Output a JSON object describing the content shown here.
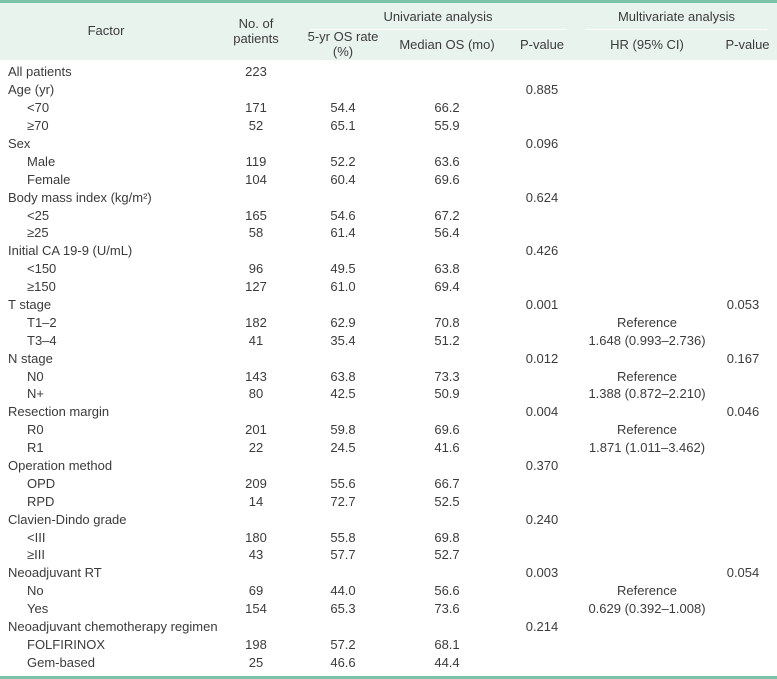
{
  "colors": {
    "accent_teal": "#7dc3a9",
    "header_bg": "#e9f3ee",
    "text": "#3b3b3b"
  },
  "table": {
    "header": {
      "factor": "Factor",
      "patients": "No. of patients",
      "univariate": "Univariate analysis",
      "multivariate": "Multivariate analysis",
      "os5": "5-yr OS rate (%)",
      "median": "Median OS (mo)",
      "p_uni": "P-value",
      "hr": "HR (95% CI)",
      "p_multi": "P-value"
    },
    "rows": [
      {
        "factor": "All patients",
        "indent": false,
        "n": "223",
        "os5": "",
        "median": "",
        "p_uni": "",
        "hr": "",
        "p_multi": ""
      },
      {
        "factor": "Age (yr)",
        "indent": false,
        "n": "",
        "os5": "",
        "median": "",
        "p_uni": "0.885",
        "hr": "",
        "p_multi": ""
      },
      {
        "factor": "<70",
        "indent": true,
        "n": "171",
        "os5": "54.4",
        "median": "66.2",
        "p_uni": "",
        "hr": "",
        "p_multi": ""
      },
      {
        "factor": "≥70",
        "indent": true,
        "n": "52",
        "os5": "65.1",
        "median": "55.9",
        "p_uni": "",
        "hr": "",
        "p_multi": ""
      },
      {
        "factor": "Sex",
        "indent": false,
        "n": "",
        "os5": "",
        "median": "",
        "p_uni": "0.096",
        "hr": "",
        "p_multi": ""
      },
      {
        "factor": "Male",
        "indent": true,
        "n": "119",
        "os5": "52.2",
        "median": "63.6",
        "p_uni": "",
        "hr": "",
        "p_multi": ""
      },
      {
        "factor": "Female",
        "indent": true,
        "n": "104",
        "os5": "60.4",
        "median": "69.6",
        "p_uni": "",
        "hr": "",
        "p_multi": ""
      },
      {
        "factor": "Body mass index (kg/m²)",
        "indent": false,
        "n": "",
        "os5": "",
        "median": "",
        "p_uni": "0.624",
        "hr": "",
        "p_multi": ""
      },
      {
        "factor": "<25",
        "indent": true,
        "n": "165",
        "os5": "54.6",
        "median": "67.2",
        "p_uni": "",
        "hr": "",
        "p_multi": ""
      },
      {
        "factor": "≥25",
        "indent": true,
        "n": "58",
        "os5": "61.4",
        "median": "56.4",
        "p_uni": "",
        "hr": "",
        "p_multi": ""
      },
      {
        "factor": "Initial CA 19-9 (U/mL)",
        "indent": false,
        "n": "",
        "os5": "",
        "median": "",
        "p_uni": "0.426",
        "hr": "",
        "p_multi": ""
      },
      {
        "factor": "<150",
        "indent": true,
        "n": "96",
        "os5": "49.5",
        "median": "63.8",
        "p_uni": "",
        "hr": "",
        "p_multi": ""
      },
      {
        "factor": "≥150",
        "indent": true,
        "n": "127",
        "os5": "61.0",
        "median": "69.4",
        "p_uni": "",
        "hr": "",
        "p_multi": ""
      },
      {
        "factor": "T stage",
        "indent": false,
        "n": "",
        "os5": "",
        "median": "",
        "p_uni": "0.001",
        "hr": "",
        "p_multi": "0.053"
      },
      {
        "factor": "T1–2",
        "indent": true,
        "n": "182",
        "os5": "62.9",
        "median": "70.8",
        "p_uni": "",
        "hr": "Reference",
        "p_multi": ""
      },
      {
        "factor": "T3–4",
        "indent": true,
        "n": "41",
        "os5": "35.4",
        "median": "51.2",
        "p_uni": "",
        "hr": "1.648 (0.993–2.736)",
        "p_multi": ""
      },
      {
        "factor": "N stage",
        "indent": false,
        "n": "",
        "os5": "",
        "median": "",
        "p_uni": "0.012",
        "hr": "",
        "p_multi": "0.167"
      },
      {
        "factor": "N0",
        "indent": true,
        "n": "143",
        "os5": "63.8",
        "median": "73.3",
        "p_uni": "",
        "hr": "Reference",
        "p_multi": ""
      },
      {
        "factor": "N+",
        "indent": true,
        "n": "80",
        "os5": "42.5",
        "median": "50.9",
        "p_uni": "",
        "hr": "1.388 (0.872–2.210)",
        "p_multi": ""
      },
      {
        "factor": "Resection margin",
        "indent": false,
        "n": "",
        "os5": "",
        "median": "",
        "p_uni": "0.004",
        "hr": "",
        "p_multi": "0.046"
      },
      {
        "factor": "R0",
        "indent": true,
        "n": "201",
        "os5": "59.8",
        "median": "69.6",
        "p_uni": "",
        "hr": "Reference",
        "p_multi": ""
      },
      {
        "factor": "R1",
        "indent": true,
        "n": "22",
        "os5": "24.5",
        "median": "41.6",
        "p_uni": "",
        "hr": "1.871 (1.011–3.462)",
        "p_multi": ""
      },
      {
        "factor": "Operation method",
        "indent": false,
        "n": "",
        "os5": "",
        "median": "",
        "p_uni": "0.370",
        "hr": "",
        "p_multi": ""
      },
      {
        "factor": "OPD",
        "indent": true,
        "n": "209",
        "os5": "55.6",
        "median": "66.7",
        "p_uni": "",
        "hr": "",
        "p_multi": ""
      },
      {
        "factor": "RPD",
        "indent": true,
        "n": "14",
        "os5": "72.7",
        "median": "52.5",
        "p_uni": "",
        "hr": "",
        "p_multi": ""
      },
      {
        "factor": "Clavien-Dindo grade",
        "indent": false,
        "n": "",
        "os5": "",
        "median": "",
        "p_uni": "0.240",
        "hr": "",
        "p_multi": ""
      },
      {
        "factor": "<III",
        "indent": true,
        "n": "180",
        "os5": "55.8",
        "median": "69.8",
        "p_uni": "",
        "hr": "",
        "p_multi": ""
      },
      {
        "factor": "≥III",
        "indent": true,
        "n": "43",
        "os5": "57.7",
        "median": "52.7",
        "p_uni": "",
        "hr": "",
        "p_multi": ""
      },
      {
        "factor": "Neoadjuvant RT",
        "indent": false,
        "n": "",
        "os5": "",
        "median": "",
        "p_uni": "0.003",
        "hr": "",
        "p_multi": "0.054"
      },
      {
        "factor": "No",
        "indent": true,
        "n": "69",
        "os5": "44.0",
        "median": "56.6",
        "p_uni": "",
        "hr": "Reference",
        "p_multi": ""
      },
      {
        "factor": "Yes",
        "indent": true,
        "n": "154",
        "os5": "65.3",
        "median": "73.6",
        "p_uni": "",
        "hr": "0.629 (0.392–1.008)",
        "p_multi": ""
      },
      {
        "factor": "Neoadjuvant chemotherapy regimen",
        "indent": false,
        "n": "",
        "os5": "",
        "median": "",
        "p_uni": "0.214",
        "hr": "",
        "p_multi": ""
      },
      {
        "factor": "FOLFIRINOX",
        "indent": true,
        "n": "198",
        "os5": "57.2",
        "median": "68.1",
        "p_uni": "",
        "hr": "",
        "p_multi": ""
      },
      {
        "factor": "Gem-based",
        "indent": true,
        "n": "25",
        "os5": "46.6",
        "median": "44.4",
        "p_uni": "",
        "hr": "",
        "p_multi": ""
      }
    ]
  }
}
